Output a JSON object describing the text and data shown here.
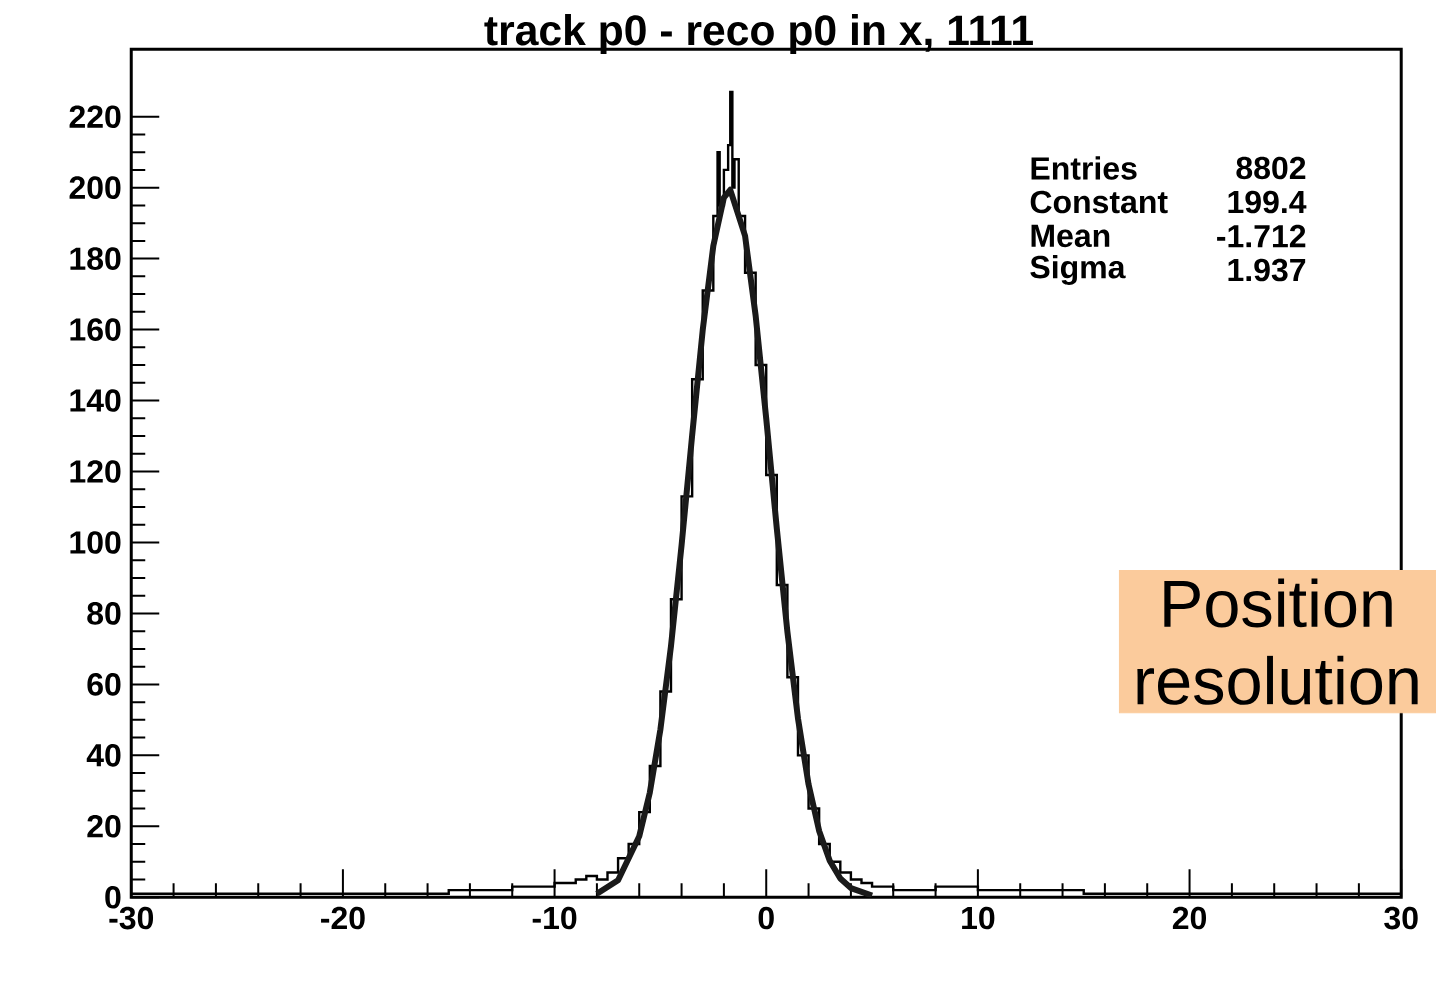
{
  "chart_data": {
    "type": "histogram",
    "title": "track p0 - reco p0 in x, 1111",
    "bins": [
      -30,
      -25,
      -20,
      -15,
      -12,
      -10,
      -9,
      -8.5,
      -8,
      -7.5,
      -7,
      -6.5,
      -6,
      -5.5,
      -5,
      -4.5,
      -4,
      -3.5,
      -3,
      -2.5,
      -2.3,
      -2.2,
      -2.0,
      -1.8,
      -1.7,
      -1.6,
      -1.5,
      -1.3,
      -1,
      -0.5,
      0,
      0.5,
      1,
      1.5,
      2,
      2.5,
      3,
      3.5,
      4,
      4.5,
      5,
      6,
      8,
      10,
      15,
      20,
      25,
      30
    ],
    "values": [
      1,
      1,
      1,
      2,
      3,
      4,
      5,
      6,
      5,
      7,
      11,
      15,
      24,
      37,
      58,
      84,
      113,
      146,
      171,
      192,
      210,
      195,
      205,
      212,
      227,
      200,
      208,
      192,
      176,
      150,
      119,
      88,
      62,
      40,
      25,
      15,
      10,
      7,
      5,
      4,
      3,
      2,
      3,
      2,
      1,
      1,
      1
    ],
    "color": "#000000",
    "series": [
      {
        "type": "line",
        "color": "#1a1a1a",
        "x": [
          -8,
          -7,
          -6,
          -5.5,
          -5,
          -4.5,
          -4,
          -3.5,
          -3,
          -2.5,
          -2,
          -1.7,
          -1,
          -0.5,
          0,
          0.5,
          1,
          1.5,
          2,
          2.5,
          3,
          3.5,
          4,
          5
        ],
        "values": [
          1.0,
          4.8,
          17.2,
          29.5,
          47.3,
          70.8,
          99.2,
          130.2,
          159.9,
          183.6,
          197.2,
          199.4,
          186.4,
          163.9,
          134.9,
          103.9,
          74.8,
          50.4,
          31.8,
          18.7,
          10.3,
          5.3,
          2.6,
          0.5
        ]
      }
    ],
    "xlim": [
      -30,
      30
    ],
    "xticks": [
      -30,
      -20,
      -10,
      0,
      10,
      20,
      30
    ],
    "ylim": [
      0,
      239
    ],
    "yticks": [
      0,
      20,
      40,
      60,
      80,
      100,
      120,
      140,
      160,
      180,
      200,
      220
    ],
    "annotations": [
      "Entries",
      "8802",
      "Constant",
      "199.4",
      "Mean",
      "-1.712",
      "Sigma",
      "1.937",
      "Position resolution"
    ]
  }
}
